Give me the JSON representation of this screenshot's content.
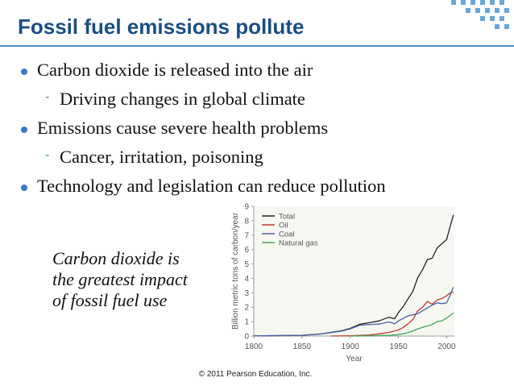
{
  "title": "Fossil fuel emissions pollute",
  "bullets": [
    {
      "level": 1,
      "text": "Carbon dioxide is released into the air"
    },
    {
      "level": 2,
      "text": "Driving changes in global climate"
    },
    {
      "level": 1,
      "text": "Emissions cause severe health problems"
    },
    {
      "level": 2,
      "text": "Cancer, irritation, poisoning"
    },
    {
      "level": 1,
      "text": "Technology and legislation can reduce pollution"
    }
  ],
  "callout": [
    "Carbon dioxide is",
    "the greatest impact",
    "of fossil fuel use"
  ],
  "credit": "© 2011 Pearson Education, Inc.",
  "colors": {
    "title": "#1b4f82",
    "accent": "#3a7bc8",
    "total": "#222222",
    "oil": "#c0392b",
    "coal": "#4a63a8",
    "gas": "#3aa957"
  },
  "chart_data": {
    "type": "line",
    "xlabel": "Year",
    "ylabel": "Billion metric tons of carbon/year",
    "xlim": [
      1800,
      2008
    ],
    "ylim": [
      0,
      9
    ],
    "xticks": [
      1800,
      1850,
      1900,
      1950,
      2000
    ],
    "yticks": [
      0,
      1,
      2,
      3,
      4,
      5,
      6,
      7,
      8,
      9
    ],
    "legend_position": "top-left",
    "series": [
      {
        "name": "Total",
        "color": "#222222",
        "x": [
          1800,
          1850,
          1870,
          1890,
          1900,
          1910,
          1920,
          1930,
          1940,
          1946,
          1950,
          1955,
          1960,
          1965,
          1970,
          1975,
          1980,
          1985,
          1990,
          1995,
          2000,
          2004,
          2007
        ],
        "y": [
          0.01,
          0.05,
          0.15,
          0.35,
          0.53,
          0.82,
          0.93,
          1.05,
          1.3,
          1.2,
          1.63,
          2.05,
          2.58,
          3.1,
          4.05,
          4.6,
          5.3,
          5.4,
          6.1,
          6.4,
          6.7,
          7.7,
          8.4
        ]
      },
      {
        "name": "Oil",
        "color": "#c0392b",
        "x": [
          1880,
          1900,
          1920,
          1930,
          1940,
          1950,
          1955,
          1960,
          1965,
          1970,
          1975,
          1980,
          1985,
          1990,
          1995,
          2000,
          2004,
          2007
        ],
        "y": [
          0.0,
          0.02,
          0.08,
          0.15,
          0.25,
          0.42,
          0.6,
          0.85,
          1.15,
          1.75,
          2.0,
          2.4,
          2.2,
          2.5,
          2.6,
          2.8,
          3.0,
          3.05
        ]
      },
      {
        "name": "Coal",
        "color": "#4a63a8",
        "x": [
          1800,
          1850,
          1870,
          1890,
          1900,
          1910,
          1920,
          1930,
          1940,
          1946,
          1950,
          1960,
          1970,
          1975,
          1980,
          1985,
          1990,
          1995,
          2000,
          2004,
          2007
        ],
        "y": [
          0.01,
          0.05,
          0.15,
          0.33,
          0.5,
          0.75,
          0.8,
          0.83,
          0.98,
          0.85,
          1.05,
          1.4,
          1.55,
          1.75,
          1.95,
          2.15,
          2.3,
          2.25,
          2.3,
          2.9,
          3.4
        ]
      },
      {
        "name": "Natural gas",
        "color": "#3aa957",
        "x": [
          1900,
          1920,
          1940,
          1950,
          1960,
          1970,
          1975,
          1980,
          1985,
          1990,
          1995,
          2000,
          2004,
          2007
        ],
        "y": [
          0.0,
          0.01,
          0.05,
          0.1,
          0.23,
          0.5,
          0.6,
          0.7,
          0.8,
          1.0,
          1.05,
          1.25,
          1.45,
          1.6
        ]
      }
    ]
  }
}
